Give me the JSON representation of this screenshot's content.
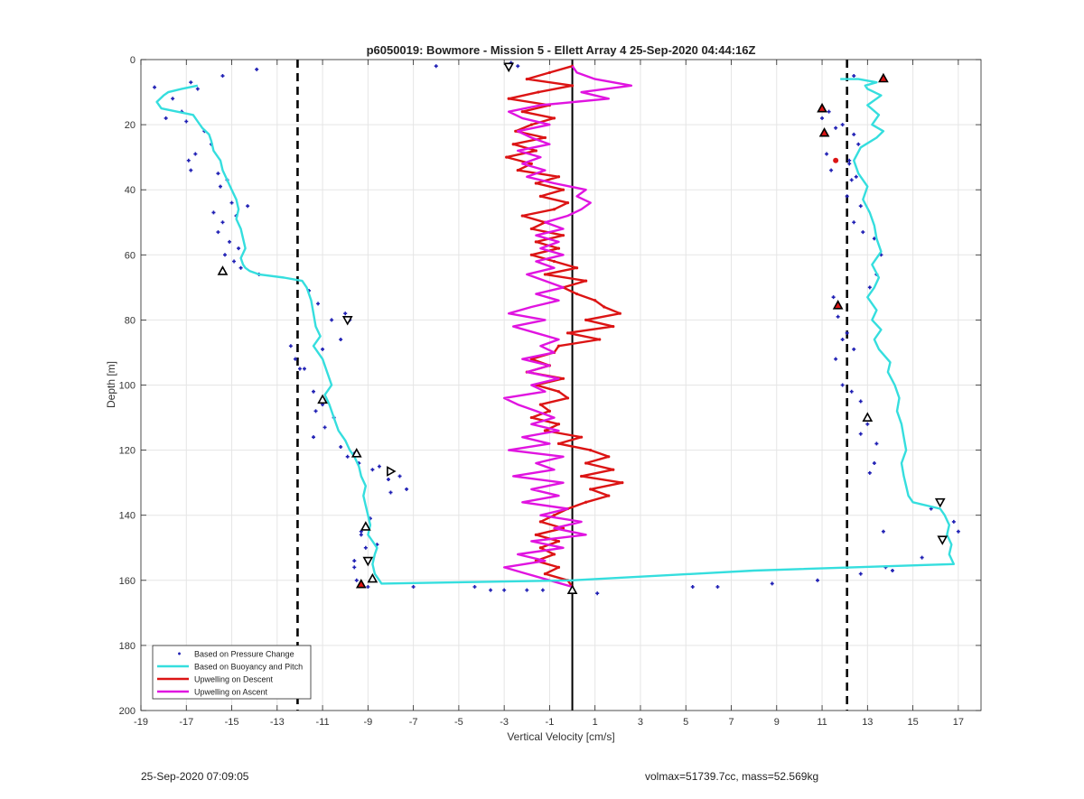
{
  "footer": {
    "left": "25-Sep-2020 07:09:05",
    "right": "volmax=51739.7cc, mass=52.569kg"
  },
  "colors": {
    "pressure": "#1f1fb4",
    "buoyancy": "#35dede",
    "descent": "#dc1414",
    "ascent": "#e014e0",
    "grid": "#e5e5e5"
  },
  "chart_data": {
    "type": "line",
    "title": "p6050019: Bowmore - Mission 5 - Ellett Array 4 25-Sep-2020 04:44:16Z",
    "xlabel": "Vertical Velocity [cm/s]",
    "ylabel": "Depth [m]",
    "xlim": [
      -19,
      18
    ],
    "ylim": [
      0,
      200
    ],
    "y_reversed": true,
    "xticks": [
      -19,
      -17,
      -15,
      -13,
      -11,
      -9,
      -7,
      -5,
      -3,
      -1,
      1,
      3,
      5,
      7,
      9,
      11,
      13,
      15,
      17
    ],
    "yticks": [
      0,
      20,
      40,
      60,
      80,
      100,
      120,
      140,
      160,
      180,
      200
    ],
    "grid": true,
    "legend_position": "bottom-left",
    "reference_lines": [
      {
        "x": -12.1,
        "style": "dashed"
      },
      {
        "x": 12.1,
        "style": "dashed"
      },
      {
        "x": 0,
        "style": "solid"
      }
    ],
    "series": [
      {
        "name": "Based on Pressure Change",
        "kind": "scatter",
        "x": [
          -18.4,
          -17.6,
          -17.2,
          -16.8,
          -17.9,
          -17.0,
          -16.5,
          -16.2,
          -15.9,
          -16.6,
          -16.9,
          -16.8,
          -15.6,
          -15.2,
          -15.8,
          -15.4,
          -15.6,
          -15.1,
          -14.7,
          -15.3,
          -14.9,
          -14.6,
          -14.8,
          -14.3,
          -15.0,
          -15.5,
          -13.8,
          -11.6,
          -11.2,
          -10.6,
          -10.0,
          -9.8,
          -10.2,
          -11.0,
          -12.2,
          -12.4,
          -11.8,
          -12.0,
          -11.4,
          -11.0,
          -11.3,
          -10.5,
          -10.9,
          -11.4,
          -10.2,
          -9.9,
          -9.6,
          -9.4,
          -8.5,
          -8.1,
          -7.6,
          -7.3,
          -8.0,
          -8.8,
          -9.3,
          -8.6,
          -9.1,
          -9.6,
          -9.5,
          -9.0,
          -9.3,
          -8.9,
          -9.6,
          -7.0,
          -4.3,
          -3.6,
          -3.0,
          -2.0,
          -1.3,
          1.1,
          5.3,
          6.4,
          8.8,
          10.8,
          12.7,
          11.3,
          11.0,
          11.6,
          11.9,
          12.4,
          11.2,
          11.4,
          12.2,
          12.6,
          12.2,
          12.5,
          12.3,
          12.1,
          12.7,
          12.4,
          12.8,
          13.3,
          13.6,
          13.4,
          13.1,
          11.5,
          11.7,
          12.1,
          11.9,
          12.4,
          11.6,
          11.9,
          12.3,
          12.7,
          13.0,
          12.7,
          13.4,
          13.3,
          13.1,
          15.8,
          16.8,
          17.0,
          15.4,
          13.8,
          14.1,
          13.7,
          12.4,
          -6.0,
          -2.7,
          -2.4,
          -15.4,
          -13.9
        ],
        "y": [
          8.5,
          12,
          16,
          7,
          18,
          19,
          9,
          22,
          26,
          29,
          31,
          34,
          35,
          37,
          47,
          50,
          53,
          56,
          58,
          60,
          62,
          64,
          48,
          45,
          44,
          39,
          66,
          71,
          75,
          80,
          78,
          80,
          86,
          89,
          92,
          88,
          95,
          95,
          102,
          106,
          108,
          110,
          113,
          116,
          119,
          122,
          121,
          124,
          125,
          129,
          128,
          132,
          133,
          126,
          146,
          149,
          150,
          156,
          160,
          162,
          145,
          141,
          154,
          162,
          162,
          163,
          163,
          163,
          163,
          164,
          162,
          162,
          161,
          160,
          158,
          16,
          18,
          21,
          20,
          23,
          29,
          34,
          32,
          26,
          31,
          36,
          37,
          42,
          45,
          50,
          53,
          55,
          60,
          66,
          70,
          73,
          79,
          84,
          86,
          89,
          92,
          100,
          102,
          105,
          112,
          115,
          118,
          124,
          127,
          138,
          142,
          145,
          153,
          156,
          157,
          145,
          5,
          2,
          1,
          2,
          5,
          3
        ]
      },
      {
        "name": "Based on Buoyancy and Pitch",
        "kind": "line",
        "depth": [
          8,
          9,
          10,
          11,
          13,
          15,
          16,
          17,
          19,
          21,
          23,
          25,
          28,
          31,
          34,
          37,
          40,
          43,
          46,
          49,
          52,
          55,
          58,
          61,
          63,
          64,
          65,
          66,
          67,
          68,
          70,
          74,
          78,
          82,
          85,
          88,
          92,
          96,
          100,
          103,
          106,
          110,
          114,
          117,
          120,
          122,
          125,
          128,
          131,
          134,
          137,
          140,
          143,
          146,
          148,
          150,
          152,
          155,
          158,
          160,
          161,
          160,
          157,
          155,
          152,
          149,
          146,
          143,
          140,
          138,
          136,
          134,
          131,
          128,
          124,
          120,
          116,
          112,
          108,
          104,
          100,
          96,
          93,
          89,
          86,
          83,
          80,
          77,
          73,
          70,
          67,
          63,
          59,
          55,
          51,
          47,
          43,
          39,
          35,
          31,
          27,
          24,
          22,
          20,
          17,
          14,
          11,
          9,
          8,
          7,
          6,
          6
        ],
        "velocity": [
          -16.5,
          -17.2,
          -17.8,
          -18.0,
          -18.3,
          -18.1,
          -17.4,
          -16.7,
          -16.5,
          -16.3,
          -16.0,
          -15.9,
          -15.8,
          -15.5,
          -15.4,
          -15.2,
          -15.0,
          -14.8,
          -14.7,
          -14.8,
          -14.6,
          -14.5,
          -14.4,
          -14.6,
          -14.5,
          -14.4,
          -14.2,
          -13.8,
          -12.7,
          -11.9,
          -11.7,
          -11.5,
          -11.4,
          -11.3,
          -11.1,
          -11.4,
          -11.0,
          -10.8,
          -10.6,
          -10.9,
          -10.7,
          -10.5,
          -10.3,
          -10.0,
          -9.8,
          -9.6,
          -9.4,
          -9.3,
          -9.1,
          -9.2,
          -9.1,
          -9.0,
          -8.9,
          -9.0,
          -8.8,
          -8.6,
          -8.7,
          -8.8,
          -8.7,
          -8.5,
          -8.4,
          0.0,
          8.0,
          16.8,
          16.6,
          16.7,
          16.5,
          16.6,
          16.4,
          16.2,
          15.0,
          14.8,
          14.7,
          14.6,
          14.5,
          14.7,
          14.6,
          14.5,
          14.3,
          14.4,
          14.2,
          13.9,
          14.0,
          13.5,
          13.3,
          13.6,
          13.2,
          13.4,
          13.0,
          13.3,
          13.5,
          13.2,
          13.6,
          13.4,
          13.3,
          13.1,
          12.8,
          13.0,
          12.6,
          12.4,
          12.7,
          13.4,
          13.7,
          13.2,
          13.5,
          13.0,
          13.6,
          13.0,
          12.9,
          13.4,
          12.6,
          11.8
        ]
      },
      {
        "name": "Upwelling on Descent",
        "kind": "line",
        "depth": [
          2,
          4,
          6,
          8,
          10,
          12,
          14,
          16,
          18,
          20,
          22,
          24,
          26,
          28,
          30,
          32,
          34,
          36,
          38,
          40,
          42,
          44,
          46,
          48,
          50,
          52,
          54,
          56,
          58,
          60,
          62,
          64,
          66,
          68,
          70,
          72,
          74,
          76,
          78,
          80,
          82,
          84,
          86,
          88,
          90,
          92,
          94,
          96,
          98,
          100,
          102,
          104,
          106,
          108,
          110,
          112,
          114,
          116,
          118,
          120,
          122,
          124,
          126,
          128,
          130,
          132,
          134,
          136,
          138,
          140,
          142,
          144,
          146,
          148,
          150,
          152,
          154,
          156,
          158,
          160,
          162
        ],
        "velocity": [
          0.0,
          -1.0,
          -2.0,
          0.0,
          -1.5,
          -2.8,
          -1.0,
          -2.2,
          -0.8,
          -1.8,
          -2.5,
          -1.2,
          -2.6,
          -1.6,
          -2.9,
          -1.8,
          -2.4,
          -0.6,
          -1.6,
          -0.4,
          -1.4,
          -0.2,
          -0.8,
          -2.2,
          -1.2,
          -1.8,
          -0.4,
          -1.6,
          -0.6,
          -1.8,
          -0.8,
          0.2,
          -1.2,
          0.6,
          -0.4,
          0.2,
          1.0,
          1.4,
          2.1,
          0.6,
          1.8,
          -0.2,
          1.2,
          -0.6,
          -0.8,
          -1.8,
          -1.0,
          -2.0,
          -0.4,
          -1.6,
          -0.6,
          -0.2,
          -1.4,
          -1.0,
          -1.8,
          -0.6,
          -1.2,
          0.4,
          -0.6,
          0.8,
          1.6,
          0.6,
          1.8,
          0.4,
          2.2,
          0.8,
          1.6,
          0.6,
          -0.2,
          -0.8,
          -1.4,
          -0.4,
          -1.6,
          -0.6,
          -1.4,
          -0.8,
          -1.6,
          -0.6,
          -1.2,
          -0.2,
          0.0
        ]
      },
      {
        "name": "Upwelling on Ascent",
        "kind": "line",
        "depth": [
          162,
          160,
          158,
          156,
          154,
          152,
          150,
          148,
          146,
          144,
          142,
          140,
          138,
          136,
          134,
          132,
          130,
          128,
          126,
          124,
          122,
          120,
          118,
          116,
          114,
          112,
          110,
          108,
          106,
          104,
          102,
          100,
          98,
          96,
          94,
          92,
          90,
          88,
          86,
          84,
          82,
          80,
          78,
          76,
          74,
          72,
          70,
          68,
          66,
          64,
          62,
          60,
          58,
          56,
          54,
          52,
          50,
          48,
          46,
          44,
          42,
          40,
          38,
          36,
          34,
          32,
          30,
          28,
          26,
          24,
          22,
          20,
          18,
          16,
          14,
          12,
          10,
          8,
          6,
          4,
          2
        ],
        "velocity": [
          0.0,
          -1.0,
          -2.0,
          -3.0,
          -1.2,
          -2.4,
          -0.4,
          -1.8,
          0.6,
          -0.8,
          0.4,
          -1.4,
          -0.2,
          -2.2,
          -0.6,
          -1.8,
          -0.4,
          -2.6,
          -0.8,
          -1.6,
          -0.4,
          -2.8,
          -1.0,
          -2.2,
          -0.6,
          -1.8,
          -0.8,
          -1.6,
          -2.4,
          -3.0,
          -1.2,
          -1.8,
          -0.6,
          -2.0,
          -1.0,
          -2.2,
          -0.8,
          -1.4,
          -0.6,
          -1.6,
          -2.6,
          -1.2,
          -2.8,
          -1.8,
          -0.6,
          -1.6,
          -0.4,
          -1.2,
          -2.0,
          -0.8,
          -1.6,
          -0.4,
          -1.4,
          -0.6,
          -1.6,
          -0.4,
          -1.2,
          -0.2,
          0.4,
          0.8,
          0.2,
          0.6,
          -0.8,
          -2.0,
          -1.2,
          -2.2,
          -1.4,
          -2.4,
          -1.0,
          -1.8,
          -2.4,
          -1.0,
          -2.2,
          -2.8,
          -1.4,
          1.6,
          0.4,
          2.6,
          1.0,
          0.2,
          0.0
        ]
      }
    ],
    "markers": [
      {
        "x": -2.8,
        "y": 2.2,
        "shape": "triangle-down",
        "fill": "none"
      },
      {
        "x": 13.7,
        "y": 5.8,
        "shape": "triangle-up",
        "fill": "#dc1414"
      },
      {
        "x": 11.0,
        "y": 15,
        "shape": "triangle-up",
        "fill": "#dc1414"
      },
      {
        "x": 11.1,
        "y": 22.5,
        "shape": "triangle-up",
        "fill": "#dc1414"
      },
      {
        "x": 11.6,
        "y": 31,
        "shape": "dot",
        "fill": "#dc1414"
      },
      {
        "x": -15.4,
        "y": 65,
        "shape": "triangle-up",
        "fill": "none"
      },
      {
        "x": -9.9,
        "y": 80,
        "shape": "triangle-down",
        "fill": "none"
      },
      {
        "x": 11.7,
        "y": 75.5,
        "shape": "triangle-up",
        "fill": "#dc1414"
      },
      {
        "x": -11.0,
        "y": 104.5,
        "shape": "triangle-up",
        "fill": "none"
      },
      {
        "x": 13.0,
        "y": 110,
        "shape": "triangle-up",
        "fill": "none"
      },
      {
        "x": -9.5,
        "y": 121,
        "shape": "triangle-up",
        "fill": "none"
      },
      {
        "x": -8.0,
        "y": 126.5,
        "shape": "triangle-right",
        "fill": "none"
      },
      {
        "x": 16.2,
        "y": 136,
        "shape": "triangle-down",
        "fill": "none"
      },
      {
        "x": -9.1,
        "y": 143.5,
        "shape": "triangle-up",
        "fill": "none"
      },
      {
        "x": 16.3,
        "y": 147.5,
        "shape": "triangle-down",
        "fill": "none"
      },
      {
        "x": -9.0,
        "y": 154,
        "shape": "triangle-down",
        "fill": "none"
      },
      {
        "x": -8.8,
        "y": 159.5,
        "shape": "triangle-up",
        "fill": "none"
      },
      {
        "x": -9.3,
        "y": 161.2,
        "shape": "triangle-up",
        "fill": "#dc1414"
      },
      {
        "x": 0.0,
        "y": 163,
        "shape": "triangle-up",
        "fill": "none"
      }
    ]
  }
}
